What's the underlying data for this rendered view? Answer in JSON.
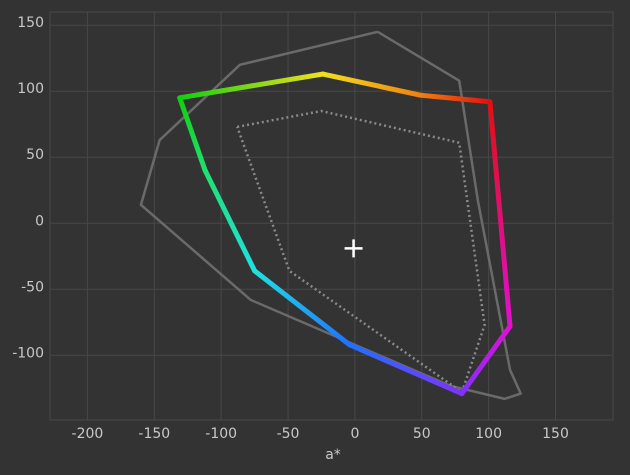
{
  "chart_data": {
    "type": "gamut",
    "xlabel": "a*",
    "xlim": [
      -228,
      193
    ],
    "ylim": [
      -149,
      160
    ],
    "xticks": [
      -200,
      -150,
      -100,
      -50,
      0,
      50,
      100,
      150
    ],
    "yticks": [
      -100,
      -50,
      0,
      50,
      100,
      150
    ],
    "grid": true,
    "series": [
      {
        "style": "outline",
        "color": "#6a6a6a",
        "x": [
          17,
          78,
          92,
          116,
          124,
          112,
          71,
          -78,
          -160,
          -146,
          -86,
          17
        ],
        "values": [
          145,
          108,
          17,
          -111,
          -129,
          -133,
          -123,
          -58,
          14,
          63,
          120,
          145
        ]
      },
      {
        "style": "dotted",
        "color": "#8a8a8a",
        "x": [
          -88,
          -25,
          78,
          97,
          80,
          -49,
          -88
        ],
        "values": [
          73,
          85,
          61,
          -77,
          -128,
          -36,
          73
        ]
      },
      {
        "style": "gradient",
        "x": [
          -131,
          -24,
          49,
          101,
          116,
          80,
          -4,
          -75,
          -112,
          -131
        ],
        "values": [
          95,
          113,
          97,
          92,
          -78,
          -129,
          -92,
          -36,
          40,
          95
        ],
        "colors": [
          "#10d010",
          "#f0e020",
          "#f08010",
          "#e01010",
          "#e010d0",
          "#8030ff",
          "#2070ff",
          "#20e0e0",
          "#20e070",
          "#10d010"
        ]
      }
    ],
    "white_point": [
      -1,
      -19
    ]
  }
}
